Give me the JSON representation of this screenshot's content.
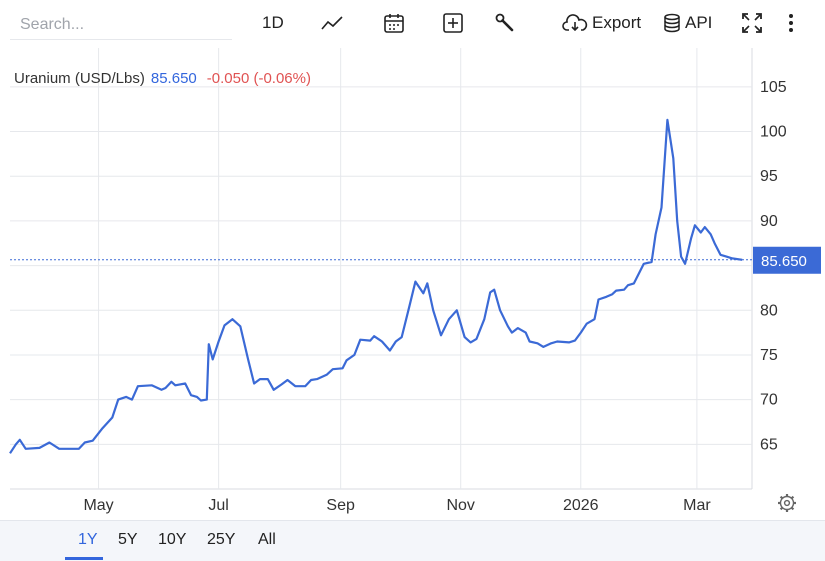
{
  "toolbar": {
    "search_placeholder": "Search...",
    "interval": "1D",
    "export_label": "Export",
    "api_label": "API"
  },
  "instrument": {
    "name": "Uranium (USD/Lbs)",
    "last": "85.650",
    "change": "-0.050 (-0.06%)"
  },
  "ranges": [
    "1Y",
    "5Y",
    "10Y",
    "25Y",
    "All"
  ],
  "active_range": "1Y",
  "colors": {
    "line": "#3b6ad6",
    "price_label_bg": "#3b6ad6",
    "negative": "#e05353",
    "accent": "#3366dd",
    "grid": "#e6e8ec"
  },
  "chart_data": {
    "type": "line",
    "title": "Uranium (USD/Lbs)",
    "xlabel": "",
    "ylabel": "",
    "ylim": [
      60,
      108
    ],
    "y_ticks": [
      65,
      70,
      75,
      80,
      85,
      90,
      95,
      100,
      105
    ],
    "x_ticks": [
      {
        "label": "May",
        "x": "2025-05-01"
      },
      {
        "label": "Jul",
        "x": "2025-07-01"
      },
      {
        "label": "Sep",
        "x": "2025-09-01"
      },
      {
        "label": "Nov",
        "x": "2025-11-01"
      },
      {
        "label": "2026",
        "x": "2026-01-01"
      },
      {
        "label": "Mar",
        "x": "2026-03-01"
      }
    ],
    "xlim": [
      "2025-03-17",
      "2026-03-29"
    ],
    "grid": true,
    "last_value": 85.65,
    "series": [
      {
        "name": "Uranium (USD/Lbs)",
        "points": [
          [
            "2025-03-17",
            64.0
          ],
          [
            "2025-03-20",
            65.0
          ],
          [
            "2025-03-22",
            65.5
          ],
          [
            "2025-03-25",
            64.5
          ],
          [
            "2025-04-01",
            64.6
          ],
          [
            "2025-04-06",
            65.2
          ],
          [
            "2025-04-11",
            64.5
          ],
          [
            "2025-04-21",
            64.5
          ],
          [
            "2025-04-24",
            65.2
          ],
          [
            "2025-04-28",
            65.4
          ],
          [
            "2025-05-03",
            66.8
          ],
          [
            "2025-05-08",
            68.0
          ],
          [
            "2025-05-11",
            70.0
          ],
          [
            "2025-05-15",
            70.3
          ],
          [
            "2025-05-18",
            70.0
          ],
          [
            "2025-05-21",
            71.5
          ],
          [
            "2025-05-28",
            71.6
          ],
          [
            "2025-06-02",
            71.1
          ],
          [
            "2025-06-04",
            71.3
          ],
          [
            "2025-06-07",
            72.0
          ],
          [
            "2025-06-09",
            71.6
          ],
          [
            "2025-06-14",
            71.8
          ],
          [
            "2025-06-17",
            70.5
          ],
          [
            "2025-06-20",
            70.3
          ],
          [
            "2025-06-22",
            69.9
          ],
          [
            "2025-06-25",
            70.0
          ],
          [
            "2025-06-26",
            76.2
          ],
          [
            "2025-06-28",
            74.5
          ],
          [
            "2025-07-01",
            76.5
          ],
          [
            "2025-07-04",
            78.3
          ],
          [
            "2025-07-08",
            79.0
          ],
          [
            "2025-07-12",
            78.2
          ],
          [
            "2025-07-16",
            74.5
          ],
          [
            "2025-07-19",
            71.8
          ],
          [
            "2025-07-22",
            72.3
          ],
          [
            "2025-07-26",
            72.3
          ],
          [
            "2025-07-29",
            71.1
          ],
          [
            "2025-08-02",
            71.7
          ],
          [
            "2025-08-05",
            72.2
          ],
          [
            "2025-08-09",
            71.5
          ],
          [
            "2025-08-14",
            71.5
          ],
          [
            "2025-08-17",
            72.2
          ],
          [
            "2025-08-20",
            72.3
          ],
          [
            "2025-08-25",
            72.8
          ],
          [
            "2025-08-28",
            73.4
          ],
          [
            "2025-09-02",
            73.5
          ],
          [
            "2025-09-04",
            74.4
          ],
          [
            "2025-09-08",
            75.0
          ],
          [
            "2025-09-11",
            76.7
          ],
          [
            "2025-09-16",
            76.6
          ],
          [
            "2025-09-18",
            77.1
          ],
          [
            "2025-09-22",
            76.5
          ],
          [
            "2025-09-26",
            75.5
          ],
          [
            "2025-09-29",
            76.5
          ],
          [
            "2025-10-02",
            77.0
          ],
          [
            "2025-10-06",
            80.5
          ],
          [
            "2025-10-09",
            83.2
          ],
          [
            "2025-10-13",
            81.9
          ],
          [
            "2025-10-15",
            83.0
          ],
          [
            "2025-10-18",
            80.0
          ],
          [
            "2025-10-22",
            77.2
          ],
          [
            "2025-10-26",
            79.0
          ],
          [
            "2025-10-30",
            80.0
          ],
          [
            "2025-11-03",
            77.0
          ],
          [
            "2025-11-06",
            76.4
          ],
          [
            "2025-11-09",
            76.8
          ],
          [
            "2025-11-13",
            79.0
          ],
          [
            "2025-11-16",
            82.0
          ],
          [
            "2025-11-18",
            82.3
          ],
          [
            "2025-11-21",
            80.0
          ],
          [
            "2025-11-25",
            78.2
          ],
          [
            "2025-11-27",
            77.5
          ],
          [
            "2025-11-30",
            78.0
          ],
          [
            "2025-12-04",
            77.5
          ],
          [
            "2025-12-06",
            76.5
          ],
          [
            "2025-12-10",
            76.3
          ],
          [
            "2025-12-13",
            75.9
          ],
          [
            "2025-12-17",
            76.3
          ],
          [
            "2025-12-20",
            76.5
          ],
          [
            "2025-12-26",
            76.4
          ],
          [
            "2025-12-29",
            76.6
          ],
          [
            "2026-01-01",
            77.5
          ],
          [
            "2026-01-04",
            78.5
          ],
          [
            "2026-01-08",
            79.0
          ],
          [
            "2026-01-10",
            81.2
          ],
          [
            "2026-01-14",
            81.5
          ],
          [
            "2026-01-17",
            81.8
          ],
          [
            "2026-01-19",
            82.2
          ],
          [
            "2026-01-23",
            82.3
          ],
          [
            "2026-01-25",
            82.8
          ],
          [
            "2026-01-28",
            83.0
          ],
          [
            "2026-02-02",
            85.2
          ],
          [
            "2026-02-06",
            85.4
          ],
          [
            "2026-02-08",
            88.5
          ],
          [
            "2026-02-11",
            91.5
          ],
          [
            "2026-02-14",
            101.3
          ],
          [
            "2026-02-17",
            97.0
          ],
          [
            "2026-02-19",
            90.0
          ],
          [
            "2026-02-21",
            86.0
          ],
          [
            "2026-02-23",
            85.2
          ],
          [
            "2026-02-26",
            88.0
          ],
          [
            "2026-02-28",
            89.5
          ],
          [
            "2026-03-03",
            88.7
          ],
          [
            "2026-03-05",
            89.3
          ],
          [
            "2026-03-08",
            88.5
          ],
          [
            "2026-03-10",
            87.5
          ],
          [
            "2026-03-13",
            86.2
          ],
          [
            "2026-03-16",
            86.0
          ],
          [
            "2026-03-19",
            85.8
          ],
          [
            "2026-03-24",
            85.65
          ]
        ]
      }
    ]
  }
}
